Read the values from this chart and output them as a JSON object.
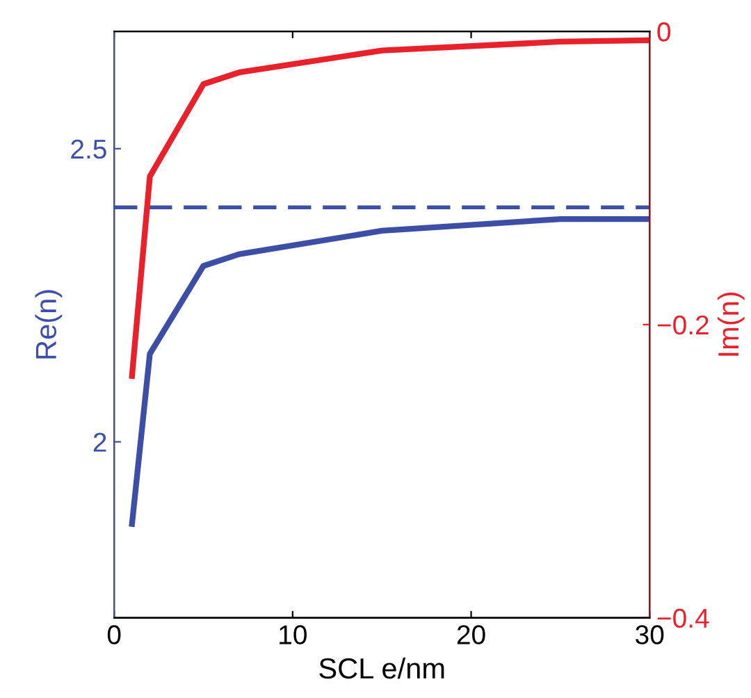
{
  "chart_data": {
    "type": "line",
    "xlabel": "SCL e/nm",
    "ylabel": "Re(n)",
    "y2label": "Im(n)",
    "x": [
      1,
      2,
      5,
      7,
      15,
      25,
      30
    ],
    "series": [
      {
        "color": "#3c4ea6",
        "values": [
          1.86,
          2.15,
          2.3,
          2.32,
          2.36,
          2.38,
          2.38
        ]
      },
      {
        "color": "#e8212b",
        "axis": "y2",
        "values": [
          -0.235,
          -0.099,
          -0.036,
          -0.028,
          -0.013,
          -0.007,
          -0.006
        ]
      }
    ],
    "ref_lines": [
      {
        "axis": "y",
        "value": 2.4,
        "color": "#3c4ea6",
        "line_style": "dashed"
      }
    ],
    "xlim": [
      0,
      30
    ],
    "xticks": [
      0,
      10,
      20,
      30
    ],
    "ylim": [
      1.7,
      2.7
    ],
    "yticks": [
      2,
      2.5
    ],
    "y2lim": [
      -0.4,
      0
    ],
    "y2ticks": [
      {
        "value": -0.4,
        "label": "−0.4"
      },
      {
        "value": -0.2,
        "label": "−0.2"
      },
      0
    ],
    "grid": false,
    "legend": false,
    "marker": "none",
    "line_style": "solid"
  }
}
